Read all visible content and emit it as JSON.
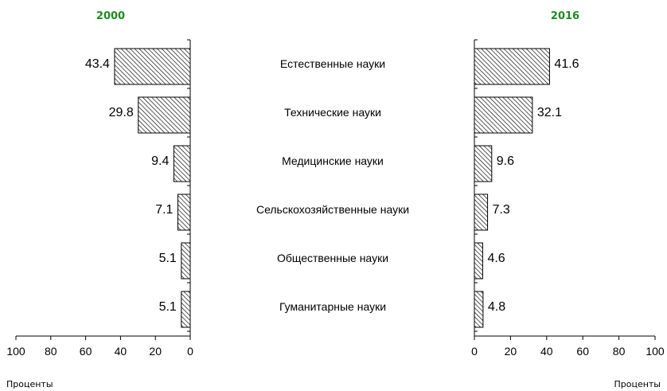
{
  "chart_data": {
    "type": "bar",
    "orientation": "horizontal",
    "layout": "butterfly",
    "categories": [
      "Естественные науки",
      "Технические науки",
      "Медицинские науки",
      "Сельскохозяйственные науки",
      "Общественные науки",
      "Гуманитарные науки"
    ],
    "series": [
      {
        "name": "2000",
        "values": [
          43.4,
          29.8,
          9.4,
          7.1,
          5.1,
          5.1
        ]
      },
      {
        "name": "2016",
        "values": [
          41.6,
          32.1,
          9.6,
          7.3,
          4.6,
          4.8
        ]
      }
    ],
    "xlim": [
      0,
      100
    ],
    "x_ticks": [
      "0",
      "20",
      "40",
      "60",
      "80",
      "100"
    ],
    "xlabel_left": "Проценты",
    "xlabel_right": "Проценты",
    "bar_fill": "diagonal-hatch",
    "colors": {
      "year_label": "#1f8a1f",
      "bar_stroke": "#000000",
      "hatch": "#000000"
    },
    "grid": false,
    "legend": "none"
  }
}
